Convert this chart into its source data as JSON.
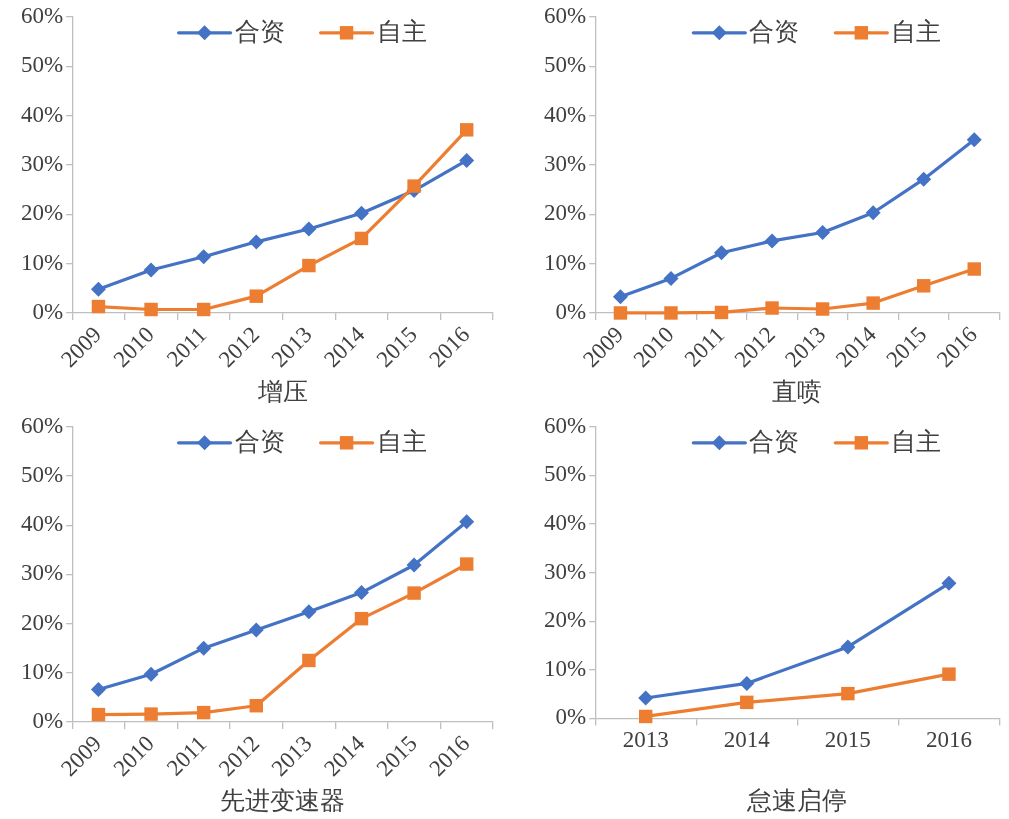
{
  "chart_data": [
    {
      "type": "line",
      "xlabel": "增压",
      "categories": [
        "2009",
        "2010",
        "2011",
        "2012",
        "2013",
        "2014",
        "2015",
        "2016"
      ],
      "series": [
        {
          "name": "合资",
          "color": "#4472c4",
          "marker": "diamond",
          "values": [
            4.8,
            8.7,
            11.4,
            14.4,
            17.0,
            20.2,
            24.8,
            30.9
          ]
        },
        {
          "name": "自主",
          "color": "#ed7d31",
          "marker": "square",
          "values": [
            1.3,
            0.7,
            0.7,
            3.4,
            9.6,
            15.1,
            25.7,
            37.1
          ]
        }
      ],
      "ylim": [
        0,
        60
      ],
      "yticks": [
        {
          "value": 0,
          "label": "0%"
        },
        {
          "value": 10,
          "label": "10%"
        },
        {
          "value": 20,
          "label": "20%"
        },
        {
          "value": 30,
          "label": "30%"
        },
        {
          "value": 40,
          "label": "40%"
        },
        {
          "value": 50,
          "label": "50%"
        },
        {
          "value": 60,
          "label": "60%"
        }
      ],
      "legend": "top",
      "grid": false
    },
    {
      "type": "line",
      "xlabel": "直喷",
      "categories": [
        "2009",
        "2010",
        "2011",
        "2012",
        "2013",
        "2014",
        "2015",
        "2016"
      ],
      "series": [
        {
          "name": "合资",
          "color": "#4472c4",
          "marker": "diamond",
          "values": [
            3.3,
            7.0,
            12.2,
            14.6,
            16.3,
            20.3,
            27.1,
            35.1
          ]
        },
        {
          "name": "自主",
          "color": "#ed7d31",
          "marker": "square",
          "values": [
            0.0,
            0.0,
            0.1,
            1.0,
            0.8,
            2.0,
            5.5,
            8.9
          ]
        }
      ],
      "ylim": [
        0,
        60
      ],
      "yticks": [
        {
          "value": 0,
          "label": "0%"
        },
        {
          "value": 10,
          "label": "10%"
        },
        {
          "value": 20,
          "label": "20%"
        },
        {
          "value": 30,
          "label": "30%"
        },
        {
          "value": 40,
          "label": "40%"
        },
        {
          "value": 50,
          "label": "50%"
        },
        {
          "value": 60,
          "label": "60%"
        }
      ],
      "legend": "top",
      "grid": false
    },
    {
      "type": "line",
      "xlabel": "先进变速器",
      "categories": [
        "2009",
        "2010",
        "2011",
        "2012",
        "2013",
        "2014",
        "2015",
        "2016"
      ],
      "series": [
        {
          "name": "合资",
          "color": "#4472c4",
          "marker": "diamond",
          "values": [
            6.6,
            9.7,
            15.0,
            18.7,
            22.4,
            26.3,
            31.9,
            40.7
          ]
        },
        {
          "name": "自主",
          "color": "#ed7d31",
          "marker": "square",
          "values": [
            1.5,
            1.6,
            1.9,
            3.3,
            12.5,
            21.0,
            26.2,
            32.1
          ]
        }
      ],
      "ylim": [
        0,
        60
      ],
      "yticks": [
        {
          "value": 0,
          "label": "0%"
        },
        {
          "value": 10,
          "label": "10%"
        },
        {
          "value": 20,
          "label": "20%"
        },
        {
          "value": 30,
          "label": "30%"
        },
        {
          "value": 40,
          "label": "40%"
        },
        {
          "value": 50,
          "label": "50%"
        },
        {
          "value": 60,
          "label": "60%"
        }
      ],
      "legend": "top",
      "grid": false
    },
    {
      "type": "line",
      "xlabel": "怠速启停",
      "categories": [
        "2013",
        "2014",
        "2015",
        "2016"
      ],
      "series": [
        {
          "name": "合资",
          "color": "#4472c4",
          "marker": "diamond",
          "values": [
            4.2,
            7.2,
            14.7,
            27.8
          ]
        },
        {
          "name": "自主",
          "color": "#ed7d31",
          "marker": "square",
          "values": [
            0.4,
            3.3,
            5.1,
            9.1
          ]
        }
      ],
      "ylim": [
        0,
        60
      ],
      "yticks": [
        {
          "value": 0,
          "label": "0%"
        },
        {
          "value": 10,
          "label": "10%"
        },
        {
          "value": 20,
          "label": "20%"
        },
        {
          "value": 30,
          "label": "30%"
        },
        {
          "value": 40,
          "label": "40%"
        },
        {
          "value": 50,
          "label": "50%"
        },
        {
          "value": 60,
          "label": "60%"
        }
      ],
      "legend": "top",
      "grid": false
    }
  ]
}
